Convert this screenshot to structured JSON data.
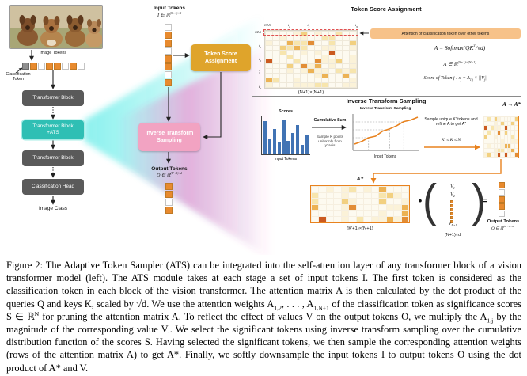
{
  "colors": {
    "teal": "#2fbfb4",
    "gold": "#dfa42b",
    "pink": "#f2a3c2",
    "orange": "#e8821e",
    "bar_blue": "#4173b4",
    "block_gray": "#5a5a5a",
    "token_orange": "#e88a2e",
    "annotation_bg": "#f7c289",
    "cone_cyan": "#2ee6e0",
    "cone_magenta": "#ff3db0"
  },
  "heatmap_palette": [
    "#fdfaf0",
    "#fbf2d8",
    "#f7e5ad",
    "#f2d080",
    "#ecb254",
    "#e28d36",
    "#cb5a20"
  ],
  "left_pipeline": {
    "image_tokens_label": "Image Tokens",
    "classification_token_label": "Classification\nToken",
    "transformer_block_1": "Transformer Block",
    "ats_block": "Transformer Block\n+ATS",
    "transformer_block_2": "Transformer Block",
    "classification_head": "Classification Head",
    "image_class_label": "Image Class",
    "token_row": [
      "g",
      "o",
      "w",
      "o",
      "o",
      "w",
      "o",
      "w"
    ]
  },
  "middle": {
    "input_tokens_label": "Input Tokens",
    "input_tokens_math": "I ∈ ℝ^{(N+1)×d}",
    "input_strip": [
      "w",
      "o",
      "o",
      "w",
      "o",
      "o",
      "w",
      "o"
    ],
    "tsa_box_label": "Token Score\nAssignment",
    "its_box_label": "Inverse Transform\nSampling",
    "output_tokens_label": "Output Tokens",
    "output_tokens_math": "O ∈ ℝ^{(K′+1)×d}",
    "output_strip": [
      "o",
      "o",
      "w",
      "o"
    ]
  },
  "tsa_panel": {
    "title": "Token Score Assignment",
    "col_labels": [
      "CLS",
      "t_{1}",
      "t_{2}",
      "⋯⋯⋯",
      "t_{N}"
    ],
    "row_labels": [
      "CLS",
      "t_{1}",
      "t_{2}",
      "⋮",
      "t_{N}"
    ],
    "annotation": "Attention of classification token over other tokens",
    "eq_attention": "A = Softmax(QK^{T}/√d)",
    "eq_dim": "A ∈ ℝ^{(N+1)×(N+1)}",
    "eq_score": "Score of Token j :  s_{j} = A_{1,j} × ||V_{j}||",
    "matrix_dim": "(N+1)×(N+1)",
    "matrix": {
      "cols": 13,
      "rows": 12,
      "seed": 11
    }
  },
  "its_panel": {
    "title": "Inverse Transform Sampling",
    "a_to_astar": "A → A*",
    "scores_label": "Scores",
    "scores": [
      0.85,
      0.4,
      0.65,
      0.3,
      0.9,
      0.35,
      0.55,
      0.75,
      0.25,
      0.5
    ],
    "cumulative_sum_label": "Cumulative Sum",
    "sample_points_note": "Sample K points\nuniformly from\ny′ axis",
    "cdf_title": "Inverse Transform Sampling",
    "cdf": [
      0.15,
      0.23,
      0.35,
      0.4,
      0.56,
      0.63,
      0.73,
      0.86,
      0.91,
      1.0
    ],
    "note_refine": "Sample unique K′ tokens and refine A to get A*",
    "note_k": "K′ ≤ K ≤ N",
    "input_tokens_label": "Input Tokens",
    "matrix": {
      "cols": 10,
      "rows": 9,
      "seed": 5
    }
  },
  "output_section": {
    "astar_label": "A*",
    "astar_matrix": {
      "cols": 13,
      "rows": 6,
      "seed": 23
    },
    "astar_dim": "(K′+1)×(N+1)",
    "dot": "•",
    "paren_open": "(",
    "paren_close": ")",
    "v1": "V_{1}",
    "v2": "V_{2}",
    "vn": "V_{N+1}",
    "v_squares": [
      "o",
      "o",
      "o",
      "o",
      "o",
      "o"
    ],
    "v_dim": "(N+1)×d",
    "equals": "=",
    "output_strip": [
      "o",
      "w",
      "o",
      "o",
      "w"
    ],
    "output_tokens_label": "Output Tokens",
    "output_tokens_math": "O ∈ ℝ^{(K′+1)×d}"
  },
  "caption": {
    "text": "Figure 2: The Adaptive Token Sampler (ATS) can be integrated into the self-attention layer of any transformer block of a vision transformer model (left). The ATS module takes at each stage a set of input tokens I. The first token is considered as the classification token in each block of the vision transformer. The attention matrix A is then calculated by the dot product of the queries Q and keys K, scaled by √d. We use the attention weights A_{1,2}, . . . , A_{1,N+1} of the classification token as significance scores S ∈ ℝ^{N} for pruning the attention matrix A. To reflect the effect of values V on the output tokens O, we multiply the A_{1,j} by the magnitude of the corresponding value V_{j}. We select the significant tokens using inverse transform sampling over the cumulative distribution function of the scores S. Having selected the significant tokens, we then sample the corresponding attention weights (rows of the attention matrix A) to get A*. Finally, we softly downsample the input tokens I to output tokens O using the dot product of A* and V."
  }
}
